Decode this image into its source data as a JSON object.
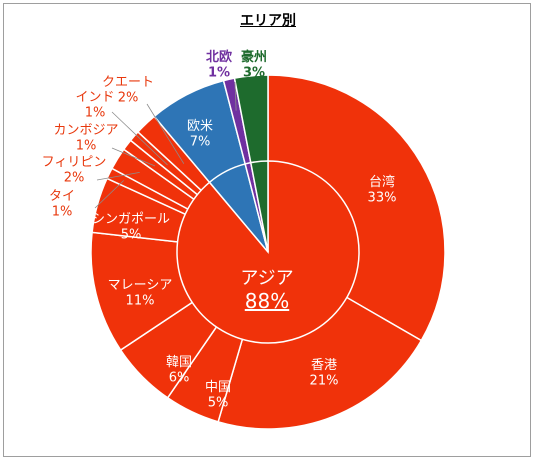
{
  "chart_data": {
    "type": "pie",
    "title": "エリア別",
    "colors": {
      "asia": "#f0320a",
      "europe_america": "#2e75b6",
      "nordic": "#7030a0",
      "australia": "#1e6b2d",
      "edge": "#ffffff"
    },
    "label_colors": {
      "asia_outside": "#e8380d",
      "europe_america": "#ffffff",
      "nordic": "#7030a0",
      "australia": "#1e6b2d",
      "inside": "#ffffff"
    },
    "inner_ring": {
      "slices": [
        {
          "name": "アジア",
          "value": 88,
          "label": "88%",
          "group": "asia"
        },
        {
          "name": "欧米",
          "value": 7,
          "label": "7%",
          "group": "europe_america"
        },
        {
          "name": "北欧",
          "value": 1,
          "label": "1%",
          "group": "nordic"
        },
        {
          "name": "豪州",
          "value": 3,
          "label": "3%",
          "group": "australia"
        }
      ]
    },
    "outer_ring": {
      "slices": [
        {
          "name": "台湾",
          "value": 33,
          "label": "33%",
          "group": "asia"
        },
        {
          "name": "香港",
          "value": 21,
          "label": "21%",
          "group": "asia"
        },
        {
          "name": "中国",
          "value": 5,
          "label": "5%",
          "group": "asia"
        },
        {
          "name": "韓国",
          "value": 6,
          "label": "6%",
          "group": "asia"
        },
        {
          "name": "マレーシア",
          "value": 11,
          "label": "11%",
          "group": "asia"
        },
        {
          "name": "シンガポール",
          "value": 5,
          "label": "5%",
          "group": "asia"
        },
        {
          "name": "タイ",
          "value": 1,
          "label": "1%",
          "group": "asia"
        },
        {
          "name": "フィリピン",
          "value": 2,
          "label": "2%",
          "group": "asia"
        },
        {
          "name": "カンボジア",
          "value": 1,
          "label": "1%",
          "group": "asia"
        },
        {
          "name": "インド",
          "value": 1,
          "label": "1%",
          "group": "asia"
        },
        {
          "name": "クエート",
          "value": 2,
          "label": "2%",
          "group": "asia"
        },
        {
          "name": "欧米",
          "value": 7,
          "label": "7%",
          "group": "europe_america"
        },
        {
          "name": "北欧",
          "value": 1,
          "label": "1%",
          "group": "nordic"
        },
        {
          "name": "豪州",
          "value": 3,
          "label": "3%",
          "group": "australia"
        }
      ]
    }
  }
}
